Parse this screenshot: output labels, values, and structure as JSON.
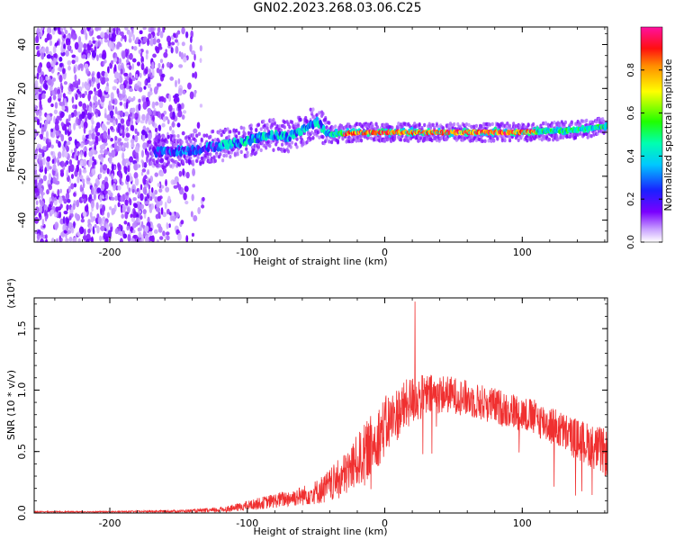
{
  "title": "GN02.2023.268.03.06.C25",
  "colors": {
    "snr_line": "#f03030",
    "axis": "#000000"
  },
  "chart_data": [
    {
      "type": "heatmap",
      "title": "GN02.2023.268.03.06.C25",
      "xlabel": "Height of straight line (km)",
      "ylabel": "Frequency (Hz)",
      "xlim": [
        -255,
        162
      ],
      "ylim": [
        -50,
        48
      ],
      "xticks": [
        -200,
        -100,
        0,
        100
      ],
      "xtick_labels": [
        "-200",
        "-100",
        "0",
        "100"
      ],
      "yticks": [
        -40,
        -20,
        0,
        20,
        40
      ],
      "ytick_labels": [
        "-40",
        "-20",
        "0",
        "20",
        "40"
      ],
      "colorbar": {
        "label": "Normalized spectral amplitude",
        "range": [
          0,
          1
        ],
        "ticks": [
          0.0,
          0.2,
          0.4,
          0.6,
          0.8
        ],
        "tick_labels": [
          "0.0",
          "0.2",
          "0.4",
          "0.6",
          "0.8"
        ],
        "colormap": "rainbow (white → violet → blue → cyan → green → yellow → orange → red → magenta)"
      },
      "features": {
        "noise_region_km": [
          -255,
          -140
        ],
        "signal_track": [
          {
            "x": -165,
            "y": -9
          },
          {
            "x": -140,
            "y": -8
          },
          {
            "x": -120,
            "y": -6
          },
          {
            "x": -100,
            "y": -4
          },
          {
            "x": -85,
            "y": -1
          },
          {
            "x": -70,
            "y": -2
          },
          {
            "x": -60,
            "y": 1
          },
          {
            "x": -50,
            "y": 5
          },
          {
            "x": -40,
            "y": -1
          },
          {
            "x": -20,
            "y": 0
          },
          {
            "x": 0,
            "y": 0
          },
          {
            "x": 50,
            "y": 0
          },
          {
            "x": 100,
            "y": 0
          },
          {
            "x": 140,
            "y": 1
          },
          {
            "x": 162,
            "y": 3
          }
        ],
        "peak_amplitude_region_km": [
          -30,
          110
        ]
      }
    },
    {
      "type": "line",
      "xlabel": "Height of straight line (km)",
      "ylabel": "SNR (10 * v/v)",
      "y_multiplier": "(x10⁴)",
      "xlim": [
        -255,
        162
      ],
      "ylim": [
        0,
        1.75
      ],
      "xticks": [
        -200,
        -100,
        0,
        100
      ],
      "xtick_labels": [
        "-200",
        "-100",
        "0",
        "100"
      ],
      "yticks": [
        0.0,
        0.5,
        1.0,
        1.5
      ],
      "ytick_labels": [
        "0.0",
        "0.5",
        "1.0",
        "1.5"
      ],
      "series": [
        {
          "color": "#f03030",
          "envelope_x": [
            -255,
            -200,
            -150,
            -125,
            -110,
            -100,
            -90,
            -80,
            -70,
            -60,
            -50,
            -40,
            -30,
            -20,
            -10,
            0,
            10,
            20,
            30,
            40,
            50,
            60,
            70,
            80,
            90,
            100,
            110,
            120,
            130,
            140,
            150,
            162
          ],
          "envelope_mean": [
            0.01,
            0.01,
            0.015,
            0.02,
            0.04,
            0.06,
            0.08,
            0.1,
            0.12,
            0.14,
            0.17,
            0.22,
            0.3,
            0.42,
            0.55,
            0.7,
            0.82,
            0.92,
            0.95,
            0.97,
            0.96,
            0.93,
            0.9,
            0.87,
            0.84,
            0.81,
            0.77,
            0.72,
            0.66,
            0.6,
            0.55,
            0.48
          ],
          "envelope_spread": [
            0.005,
            0.005,
            0.01,
            0.02,
            0.03,
            0.04,
            0.05,
            0.06,
            0.07,
            0.08,
            0.1,
            0.14,
            0.18,
            0.22,
            0.25,
            0.25,
            0.22,
            0.2,
            0.18,
            0.16,
            0.15,
            0.15,
            0.15,
            0.15,
            0.15,
            0.15,
            0.15,
            0.16,
            0.16,
            0.17,
            0.18,
            0.2
          ],
          "peak": {
            "x": 22,
            "y": 1.72
          }
        }
      ]
    }
  ]
}
